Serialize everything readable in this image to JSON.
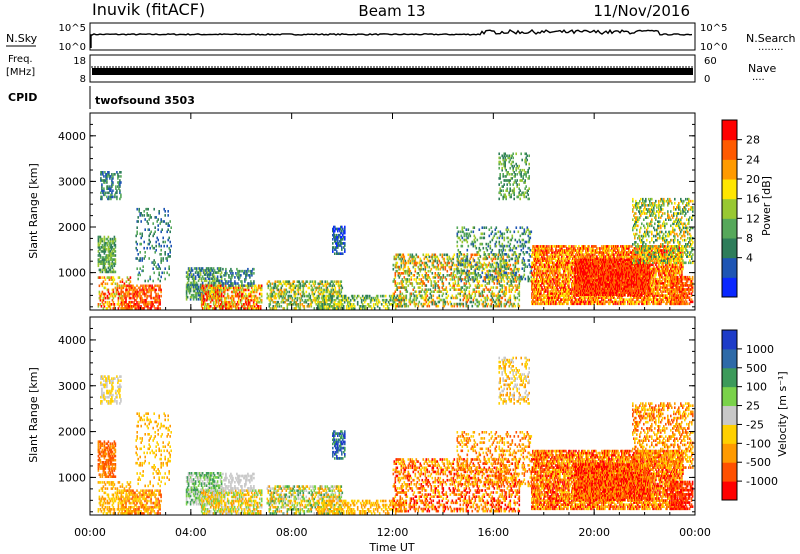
{
  "header": {
    "site": "Inuvik (fitACF)",
    "beam": "Beam 13",
    "date": "11/Nov/2016"
  },
  "labels": {
    "nsky": "N.Sky",
    "nsearch": "N.Search",
    "nsearch_dots": "........",
    "freq_line1": "Freq.",
    "freq_line2": "[MHz]",
    "nave": "Nave",
    "nave_dots": "....",
    "cpid": "CPID",
    "cpid_value": "twofsound 3503",
    "nsky_ticks": [
      "10^5",
      "10^0"
    ],
    "nsearch_ticks": [
      "10^5",
      "10^0"
    ],
    "freq_ticks": [
      "18",
      "8"
    ],
    "nave_ticks": [
      "60",
      "0"
    ]
  },
  "chart_data": [
    {
      "type": "heatmap",
      "panel": "power",
      "ylabel": "Slant Range [km]",
      "y_ticks": [
        "1000",
        "2000",
        "3000",
        "4000"
      ],
      "ylim": [
        180,
        4500
      ],
      "colorbar": {
        "label": "Power [dB]",
        "ticks": [
          "4",
          "8",
          "12",
          "16",
          "20",
          "24",
          "28"
        ],
        "range": [
          0,
          30
        ],
        "colors": [
          "#0a28ff",
          "#1e55b4",
          "#2e7d5a",
          "#56a85a",
          "#98c832",
          "#ffe600",
          "#ff9a00",
          "#ff5a00",
          "#ff0000"
        ]
      }
    },
    {
      "type": "heatmap",
      "panel": "velocity",
      "ylabel": "Slant Range [km]",
      "y_ticks": [
        "1000",
        "2000",
        "3000",
        "4000"
      ],
      "ylim": [
        180,
        4500
      ],
      "colorbar": {
        "label": "Velocity [m s⁻¹]",
        "ticks": [
          "1000",
          "500",
          "100",
          "25",
          "-25",
          "-100",
          "-500",
          "-1000"
        ],
        "colors": [
          "#1e3cc8",
          "#2e6aa8",
          "#3c9a5a",
          "#7ad24a",
          "#c8c8c8",
          "#ffd000",
          "#ff9a00",
          "#ff5000",
          "#ff0000"
        ]
      }
    }
  ],
  "xaxis": {
    "label": "Time UT",
    "ticks": [
      "00:00",
      "04:00",
      "08:00",
      "12:00",
      "16:00",
      "20:00",
      "00:00"
    ]
  }
}
